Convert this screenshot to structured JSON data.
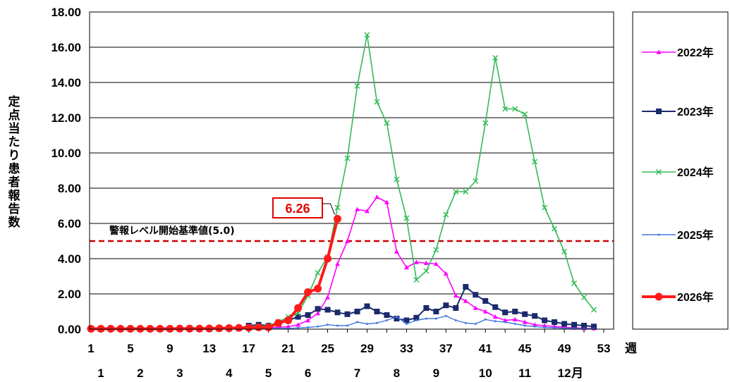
{
  "chart_data": {
    "type": "line",
    "ylabel": "定点当たり患者報告数",
    "ylim": [
      0,
      18
    ],
    "yticks": [
      "0.00",
      "2.00",
      "4.00",
      "6.00",
      "8.00",
      "10.00",
      "12.00",
      "14.00",
      "16.00",
      "18.00"
    ],
    "xlim": [
      1,
      53
    ],
    "xticks": [
      "1",
      "5",
      "9",
      "13",
      "17",
      "21",
      "25",
      "29",
      "33",
      "37",
      "41",
      "45",
      "49",
      "53"
    ],
    "x_unit": "週",
    "months": [
      "1",
      "2",
      "3",
      "4",
      "5",
      "6",
      "7",
      "8",
      "9",
      "10",
      "11",
      "12"
    ],
    "month_unit": "月",
    "threshold": {
      "value": 5.0,
      "label": "警報レベル開始基準値(5.0)",
      "color": "#cc0000"
    },
    "callout": {
      "label": "6.26",
      "x": 26,
      "y": 6.26
    },
    "grid": true,
    "legend_position": "right",
    "series": [
      {
        "name": "2022年",
        "color": "#ff00ff",
        "marker": "triangle",
        "x": [
          1,
          2,
          3,
          4,
          5,
          6,
          7,
          8,
          9,
          10,
          11,
          12,
          13,
          14,
          15,
          16,
          17,
          18,
          19,
          20,
          21,
          22,
          23,
          24,
          25,
          26,
          27,
          28,
          29,
          30,
          31,
          32,
          33,
          34,
          35,
          36,
          37,
          38,
          39,
          40,
          41,
          42,
          43,
          44,
          45,
          46,
          47,
          48,
          49,
          50,
          51,
          52
        ],
        "values": [
          0.02,
          0.02,
          0.02,
          0.02,
          0.02,
          0.02,
          0.02,
          0.02,
          0.02,
          0.02,
          0.02,
          0.02,
          0.03,
          0.03,
          0.04,
          0.05,
          0.06,
          0.07,
          0.09,
          0.1,
          0.14,
          0.25,
          0.5,
          0.9,
          1.8,
          3.7,
          5.0,
          6.8,
          6.7,
          7.5,
          7.2,
          4.4,
          3.5,
          3.8,
          3.75,
          3.7,
          3.15,
          1.9,
          1.6,
          1.2,
          1.0,
          0.7,
          0.5,
          0.55,
          0.4,
          0.25,
          0.2,
          0.15,
          0.1,
          0.08,
          0.05,
          0.04
        ]
      },
      {
        "name": "2023年",
        "color": "#1a2a6c",
        "marker": "square",
        "x": [
          1,
          2,
          3,
          4,
          5,
          6,
          7,
          8,
          9,
          10,
          11,
          12,
          13,
          14,
          15,
          16,
          17,
          18,
          19,
          20,
          21,
          22,
          23,
          24,
          25,
          26,
          27,
          28,
          29,
          30,
          31,
          32,
          33,
          34,
          35,
          36,
          37,
          38,
          39,
          40,
          41,
          42,
          43,
          44,
          45,
          46,
          47,
          48,
          49,
          50,
          51,
          52
        ],
        "values": [
          0.01,
          0.01,
          0.01,
          0.01,
          0.01,
          0.01,
          0.01,
          0.01,
          0.01,
          0.01,
          0.01,
          0.01,
          0.01,
          0.02,
          0.03,
          0.05,
          0.2,
          0.25,
          0.2,
          0.3,
          0.5,
          0.7,
          0.8,
          1.15,
          1.1,
          0.95,
          0.85,
          1.0,
          1.3,
          1.0,
          0.8,
          0.6,
          0.5,
          0.65,
          1.2,
          1.0,
          1.35,
          1.2,
          2.4,
          1.95,
          1.6,
          1.25,
          0.95,
          1.0,
          0.85,
          0.75,
          0.5,
          0.4,
          0.3,
          0.25,
          0.2,
          0.15
        ]
      },
      {
        "name": "2024年",
        "color": "#33bb55",
        "marker": "x",
        "x": [
          1,
          2,
          3,
          4,
          5,
          6,
          7,
          8,
          9,
          10,
          11,
          12,
          13,
          14,
          15,
          16,
          17,
          18,
          19,
          20,
          21,
          22,
          23,
          24,
          25,
          26,
          27,
          28,
          29,
          30,
          31,
          32,
          33,
          34,
          35,
          36,
          37,
          38,
          39,
          40,
          41,
          42,
          43,
          44,
          45,
          46,
          47,
          48,
          49,
          50,
          51,
          52
        ],
        "values": [
          0.02,
          0.02,
          0.02,
          0.02,
          0.02,
          0.02,
          0.02,
          0.02,
          0.02,
          0.02,
          0.02,
          0.02,
          0.03,
          0.03,
          0.04,
          0.06,
          0.1,
          0.15,
          0.2,
          0.4,
          0.7,
          0.9,
          1.9,
          3.2,
          4.1,
          6.9,
          9.7,
          13.8,
          16.7,
          12.9,
          11.7,
          8.5,
          6.3,
          2.8,
          3.3,
          4.5,
          6.5,
          7.8,
          7.8,
          8.4,
          11.7,
          15.4,
          12.5,
          12.5,
          12.2,
          9.5,
          6.9,
          5.7,
          4.4,
          2.6,
          1.8,
          1.1
        ]
      },
      {
        "name": "2025年",
        "color": "#4477dd",
        "marker": "dot",
        "x": [
          1,
          2,
          3,
          4,
          5,
          6,
          7,
          8,
          9,
          10,
          11,
          12,
          13,
          14,
          15,
          16,
          17,
          18,
          19,
          20,
          21,
          22,
          23,
          24,
          25,
          26,
          27,
          28,
          29,
          30,
          31,
          32,
          33,
          34,
          35,
          36,
          37,
          38,
          39,
          40,
          41,
          42,
          43,
          44,
          45,
          46,
          47,
          48,
          49,
          50,
          51,
          52
        ],
        "values": [
          0.01,
          0.01,
          0.01,
          0.01,
          0.01,
          0.01,
          0.01,
          0.01,
          0.01,
          0.01,
          0.01,
          0.01,
          0.01,
          0.01,
          0.01,
          0.02,
          0.02,
          0.02,
          0.03,
          0.04,
          0.05,
          0.07,
          0.1,
          0.15,
          0.25,
          0.2,
          0.2,
          0.4,
          0.3,
          0.35,
          0.5,
          0.7,
          0.3,
          0.5,
          0.6,
          0.6,
          0.75,
          0.5,
          0.35,
          0.3,
          0.55,
          0.45,
          0.4,
          0.3,
          0.2,
          0.15,
          0.1,
          0.08,
          0.05,
          0.04,
          0.03,
          0.02
        ]
      },
      {
        "name": "2026年",
        "color": "#ff1a1a",
        "marker": "circle",
        "x": [
          1,
          2,
          3,
          4,
          5,
          6,
          7,
          8,
          9,
          10,
          11,
          12,
          13,
          14,
          15,
          16,
          17,
          18,
          19,
          20,
          21,
          22,
          23,
          24,
          25,
          26
        ],
        "values": [
          0.02,
          0.02,
          0.02,
          0.02,
          0.02,
          0.02,
          0.02,
          0.02,
          0.02,
          0.03,
          0.03,
          0.03,
          0.04,
          0.05,
          0.06,
          0.07,
          0.08,
          0.1,
          0.1,
          0.35,
          0.5,
          1.2,
          2.1,
          2.3,
          4.0,
          6.26
        ]
      }
    ]
  }
}
